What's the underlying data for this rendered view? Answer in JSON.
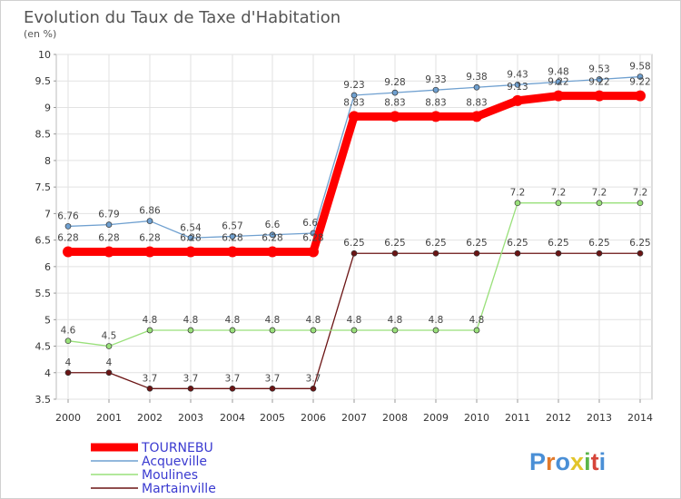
{
  "chart_data": {
    "type": "line",
    "title": "Evolution du Taux de Taxe d'Habitation",
    "subtitle": "(en %)",
    "xlabel": "",
    "ylabel": "",
    "ylim": [
      3.5,
      10
    ],
    "yticks": [
      "3.5",
      "4",
      "4.5",
      "5",
      "5.5",
      "6",
      "6.5",
      "7",
      "7.5",
      "8",
      "8.5",
      "9",
      "9.5",
      "10"
    ],
    "x": [
      "2000",
      "2001",
      "2002",
      "2003",
      "2004",
      "2005",
      "2006",
      "2007",
      "2008",
      "2009",
      "2010",
      "2011",
      "2012",
      "2013",
      "2014"
    ],
    "grid": true,
    "legend": "bottom-left",
    "series": [
      {
        "name": "Martainville",
        "color": "#6b1414",
        "values": [
          4,
          4,
          3.7,
          3.7,
          3.7,
          3.7,
          3.7,
          6.25,
          6.25,
          6.25,
          6.25,
          6.25,
          6.25,
          6.25,
          6.25
        ],
        "labels": [
          "4",
          "4",
          "3.7",
          "3.7",
          "3.7",
          "3.7",
          "3.7",
          "6.25",
          "6.25",
          "6.25",
          "6.25",
          "6.25",
          "6.25",
          "6.25",
          "6.25"
        ]
      },
      {
        "name": "Moulines",
        "color": "#99e07a",
        "values": [
          4.6,
          4.5,
          4.8,
          4.8,
          4.8,
          4.8,
          4.8,
          4.8,
          4.8,
          4.8,
          4.8,
          7.2,
          7.2,
          7.2,
          7.2
        ],
        "labels": [
          "4.6",
          "4.5",
          "4.8",
          "4.8",
          "4.8",
          "4.8",
          "4.8",
          "4.8",
          "4.8",
          "4.8",
          "4.8",
          "7.2",
          "7.2",
          "7.2",
          "7.2"
        ]
      },
      {
        "name": "Acqueville",
        "color": "#6fa0d0",
        "values": [
          6.76,
          6.79,
          6.86,
          6.54,
          6.57,
          6.6,
          6.63,
          9.23,
          9.28,
          9.33,
          9.38,
          9.43,
          9.48,
          9.53,
          9.58
        ],
        "labels": [
          "6.76",
          "6.79",
          "6.86",
          "6.54",
          "6.57",
          "6.6",
          "6.63",
          "9.23",
          "9.28",
          "9.33",
          "9.38",
          "9.43",
          "9.48",
          "9.53",
          "9.58"
        ]
      },
      {
        "name": "TOURNEBU",
        "color": "#ff0000",
        "values": [
          6.28,
          6.28,
          6.28,
          6.28,
          6.28,
          6.28,
          6.28,
          8.83,
          8.83,
          8.83,
          8.83,
          9.13,
          9.22,
          9.22,
          9.22
        ],
        "labels": [
          "6.28",
          "6.28",
          "6.28",
          "6.28",
          "6.28",
          "6.28",
          "6.28",
          "8.83",
          "8.83",
          "8.83",
          "8.83",
          "9.13",
          "9.22",
          "9.22",
          "9.22"
        ]
      }
    ],
    "legend_entries": [
      "TOURNEBU",
      "Acqueville",
      "Moulines",
      "Martainville"
    ]
  },
  "watermark": {
    "text": "Proxiti"
  }
}
